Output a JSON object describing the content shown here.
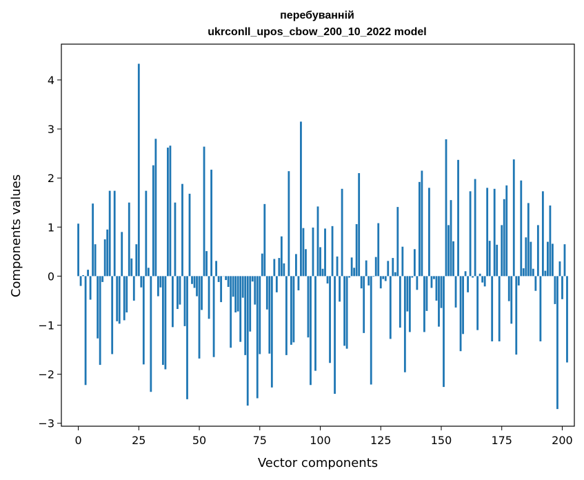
{
  "chart_data": {
    "type": "bar",
    "title": "перебуванній",
    "subtitle": "ukrconll_upos_cbow_200_10_2022 model",
    "xlabel": "Vector components",
    "ylabel": "Components values",
    "xlim": [
      -7,
      205
    ],
    "ylim": [
      -3.06,
      4.73
    ],
    "xticks": [
      0,
      25,
      50,
      75,
      100,
      125,
      150,
      175,
      200
    ],
    "yticks": [
      -3,
      -2,
      -1,
      0,
      1,
      2,
      3,
      4
    ],
    "bar_color": "#1f77b4",
    "grid": false,
    "values": [
      1.07,
      -0.2,
      0.02,
      -2.22,
      0.13,
      -0.48,
      1.48,
      0.65,
      -1.27,
      -1.81,
      -0.12,
      0.75,
      0.95,
      1.74,
      -1.59,
      1.74,
      -0.92,
      -0.97,
      0.9,
      -0.9,
      -0.74,
      1.5,
      0.36,
      -0.5,
      0.65,
      4.33,
      -0.23,
      -1.8,
      1.74,
      0.17,
      -2.36,
      2.26,
      2.8,
      -0.41,
      -0.23,
      -1.81,
      -1.9,
      2.62,
      2.66,
      -1.04,
      1.5,
      -0.67,
      -0.58,
      1.88,
      -1.02,
      -2.51,
      1.68,
      -0.16,
      -0.24,
      -0.41,
      -1.68,
      -0.69,
      2.64,
      0.51,
      -0.87,
      2.17,
      -1.65,
      0.31,
      -0.12,
      -0.53,
      0.0,
      -0.08,
      -0.22,
      -1.46,
      -0.42,
      -0.74,
      -0.72,
      -1.34,
      -0.44,
      -1.61,
      -2.64,
      -1.13,
      -0.11,
      -0.58,
      -2.49,
      -1.59,
      0.46,
      1.47,
      -0.68,
      -1.58,
      -2.27,
      0.35,
      -0.33,
      0.37,
      0.81,
      0.26,
      -1.61,
      2.14,
      -1.4,
      -1.35,
      0.45,
      -0.29,
      3.15,
      0.98,
      0.55,
      -1.25,
      -2.22,
      0.99,
      -1.93,
      1.42,
      0.59,
      0.15,
      0.97,
      -0.15,
      -1.77,
      1.02,
      -2.4,
      0.4,
      -0.52,
      1.78,
      -1.42,
      -1.48,
      -0.03,
      0.38,
      0.17,
      1.06,
      2.1,
      -0.25,
      -1.16,
      0.32,
      -0.19,
      -2.21,
      -0.01,
      0.39,
      1.08,
      -0.25,
      -0.06,
      -0.1,
      0.31,
      -1.28,
      0.37,
      0.08,
      1.41,
      -1.05,
      0.6,
      -1.96,
      -0.72,
      -1.14,
      -0.03,
      0.55,
      -0.28,
      1.92,
      2.15,
      -1.14,
      -0.71,
      1.8,
      -0.24,
      -0.06,
      -0.5,
      -1.03,
      -0.65,
      -2.26,
      2.79,
      1.04,
      1.55,
      0.71,
      -0.64,
      2.37,
      -1.53,
      -1.18,
      0.1,
      -0.33,
      1.73,
      -0.03,
      1.98,
      -1.1,
      0.05,
      -0.13,
      -0.21,
      1.8,
      0.72,
      -1.33,
      1.78,
      0.64,
      -1.33,
      1.04,
      1.57,
      1.85,
      -0.51,
      -0.97,
      2.38,
      -1.6,
      -0.19,
      1.95,
      0.16,
      0.79,
      1.49,
      0.7,
      0.15,
      -0.3,
      1.04,
      -1.33,
      1.73,
      0.11,
      0.7,
      1.44,
      0.66,
      -0.57,
      -2.71,
      0.3,
      -0.47,
      0.65,
      -1.76
    ]
  }
}
